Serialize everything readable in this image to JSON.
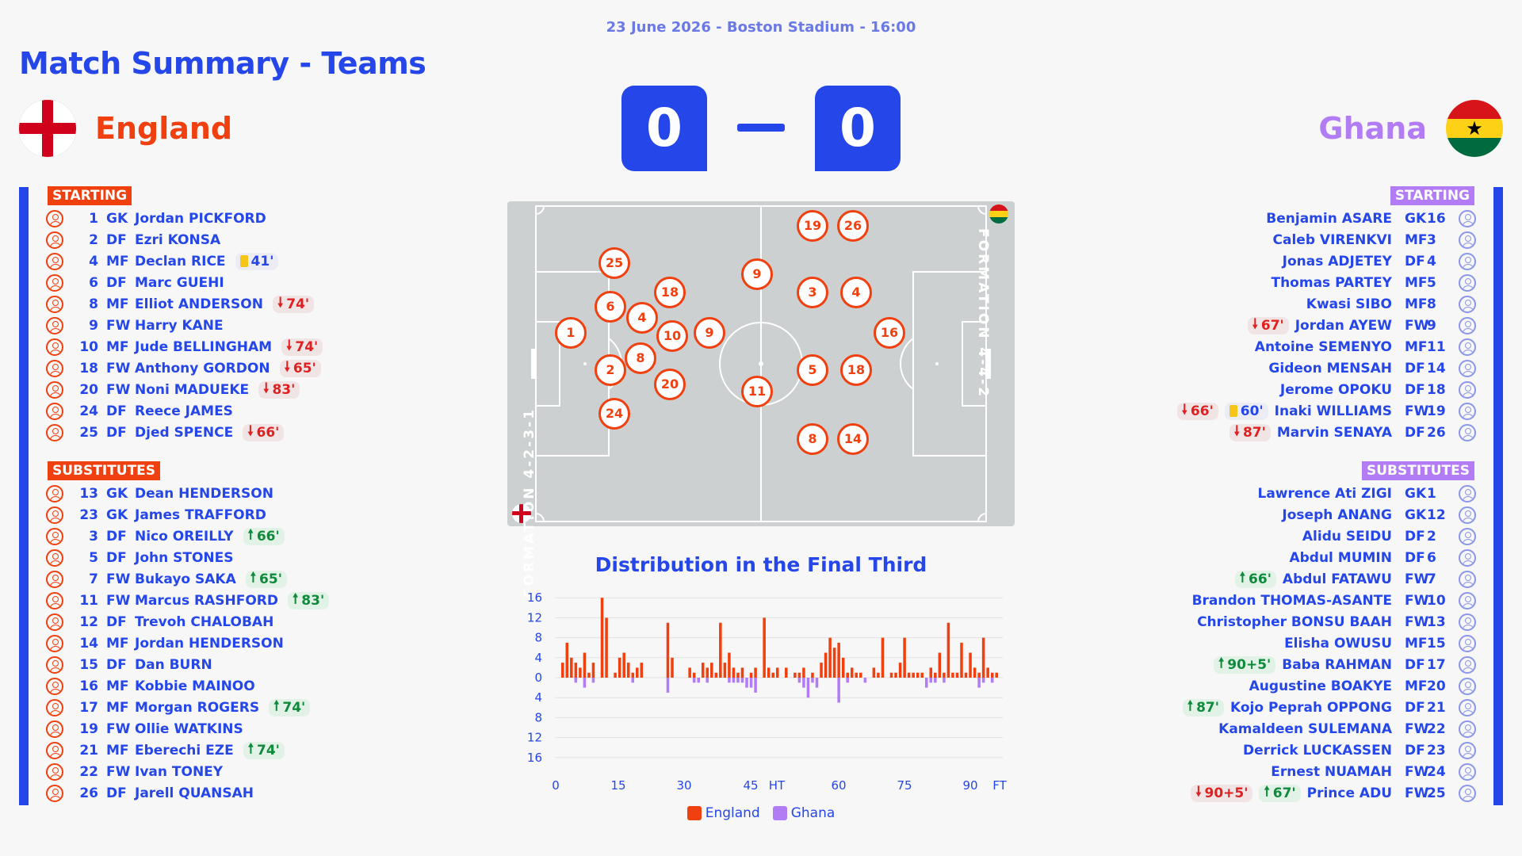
{
  "meta": "23 June 2026 - Boston Stadium - 16:00",
  "title": "Match Summary - Teams",
  "home": {
    "name": "England",
    "score": "0",
    "color": "#f04010",
    "formation": "FORMATION 4-2-3-1",
    "starting_label": "STARTING",
    "subs_label": "SUBSTITUTES",
    "starting": [
      {
        "num": "1",
        "pos": "GK",
        "name": "Jordan PICKFORD",
        "events": []
      },
      {
        "num": "2",
        "pos": "DF",
        "name": "Ezri KONSA",
        "events": []
      },
      {
        "num": "4",
        "pos": "MF",
        "name": "Declan RICE",
        "events": [
          {
            "type": "yellow",
            "text": "41'"
          }
        ]
      },
      {
        "num": "6",
        "pos": "DF",
        "name": "Marc GUEHI",
        "events": []
      },
      {
        "num": "8",
        "pos": "MF",
        "name": "Elliot ANDERSON",
        "events": [
          {
            "type": "out",
            "text": "74'"
          }
        ]
      },
      {
        "num": "9",
        "pos": "FW",
        "name": "Harry KANE",
        "events": []
      },
      {
        "num": "10",
        "pos": "MF",
        "name": "Jude BELLINGHAM",
        "events": [
          {
            "type": "out",
            "text": "74'"
          }
        ]
      },
      {
        "num": "18",
        "pos": "FW",
        "name": "Anthony GORDON",
        "events": [
          {
            "type": "out",
            "text": "65'"
          }
        ]
      },
      {
        "num": "20",
        "pos": "FW",
        "name": "Noni MADUEKE",
        "events": [
          {
            "type": "out",
            "text": "83'"
          }
        ]
      },
      {
        "num": "24",
        "pos": "DF",
        "name": "Reece JAMES",
        "events": []
      },
      {
        "num": "25",
        "pos": "DF",
        "name": "Djed SPENCE",
        "events": [
          {
            "type": "out",
            "text": "66'"
          }
        ]
      }
    ],
    "substitutes": [
      {
        "num": "13",
        "pos": "GK",
        "name": "Dean HENDERSON",
        "events": []
      },
      {
        "num": "23",
        "pos": "GK",
        "name": "James TRAFFORD",
        "events": []
      },
      {
        "num": "3",
        "pos": "DF",
        "name": "Nico OREILLY",
        "events": [
          {
            "type": "in",
            "text": "66'"
          }
        ]
      },
      {
        "num": "5",
        "pos": "DF",
        "name": "John STONES",
        "events": []
      },
      {
        "num": "7",
        "pos": "FW",
        "name": "Bukayo SAKA",
        "events": [
          {
            "type": "in",
            "text": "65'"
          }
        ]
      },
      {
        "num": "11",
        "pos": "FW",
        "name": "Marcus RASHFORD",
        "events": [
          {
            "type": "in",
            "text": "83'"
          }
        ]
      },
      {
        "num": "12",
        "pos": "DF",
        "name": "Trevoh CHALOBAH",
        "events": []
      },
      {
        "num": "14",
        "pos": "MF",
        "name": "Jordan HENDERSON",
        "events": []
      },
      {
        "num": "15",
        "pos": "DF",
        "name": "Dan BURN",
        "events": []
      },
      {
        "num": "16",
        "pos": "MF",
        "name": "Kobbie MAINOO",
        "events": []
      },
      {
        "num": "17",
        "pos": "MF",
        "name": "Morgan ROGERS",
        "events": [
          {
            "type": "in",
            "text": "74'"
          }
        ]
      },
      {
        "num": "19",
        "pos": "FW",
        "name": "Ollie WATKINS",
        "events": []
      },
      {
        "num": "21",
        "pos": "MF",
        "name": "Eberechi EZE",
        "events": [
          {
            "type": "in",
            "text": "74'"
          }
        ]
      },
      {
        "num": "22",
        "pos": "FW",
        "name": "Ivan TONEY",
        "events": []
      },
      {
        "num": "26",
        "pos": "DF",
        "name": "Jarell QUANSAH",
        "events": []
      }
    ]
  },
  "away": {
    "name": "Ghana",
    "score": "0",
    "color": "#b27cf5",
    "formation": "FORMATION 4-4-2",
    "starting_label": "STARTING",
    "subs_label": "SUBSTITUTES",
    "starting": [
      {
        "num": "16",
        "pos": "GK",
        "name": "Benjamin ASARE",
        "events": []
      },
      {
        "num": "3",
        "pos": "MF",
        "name": "Caleb VIRENKVI",
        "events": []
      },
      {
        "num": "4",
        "pos": "DF",
        "name": "Jonas ADJETEY",
        "events": []
      },
      {
        "num": "5",
        "pos": "MF",
        "name": "Thomas PARTEY",
        "events": []
      },
      {
        "num": "8",
        "pos": "MF",
        "name": "Kwasi SIBO",
        "events": []
      },
      {
        "num": "9",
        "pos": "FW",
        "name": "Jordan AYEW",
        "events": [
          {
            "type": "out",
            "text": "67'"
          }
        ]
      },
      {
        "num": "11",
        "pos": "MF",
        "name": "Antoine SEMENYO",
        "events": []
      },
      {
        "num": "14",
        "pos": "DF",
        "name": "Gideon MENSAH",
        "events": []
      },
      {
        "num": "18",
        "pos": "DF",
        "name": "Jerome OPOKU",
        "events": []
      },
      {
        "num": "19",
        "pos": "FW",
        "name": "Inaki WILLIAMS",
        "events": [
          {
            "type": "out",
            "text": "66'"
          },
          {
            "type": "yellow",
            "text": "60'"
          }
        ]
      },
      {
        "num": "26",
        "pos": "DF",
        "name": "Marvin SENAYA",
        "events": [
          {
            "type": "out",
            "text": "87'"
          }
        ]
      }
    ],
    "substitutes": [
      {
        "num": "1",
        "pos": "GK",
        "name": "Lawrence Ati ZIGI",
        "events": []
      },
      {
        "num": "12",
        "pos": "GK",
        "name": "Joseph ANANG",
        "events": []
      },
      {
        "num": "2",
        "pos": "DF",
        "name": "Alidu SEIDU",
        "events": []
      },
      {
        "num": "6",
        "pos": "DF",
        "name": "Abdul MUMIN",
        "events": []
      },
      {
        "num": "7",
        "pos": "FW",
        "name": "Abdul FATAWU",
        "events": [
          {
            "type": "in",
            "text": "66'"
          }
        ]
      },
      {
        "num": "10",
        "pos": "FW",
        "name": "Brandon THOMAS-ASANTE",
        "events": []
      },
      {
        "num": "13",
        "pos": "FW",
        "name": "Christopher BONSU BAAH",
        "events": []
      },
      {
        "num": "15",
        "pos": "MF",
        "name": "Elisha OWUSU",
        "events": []
      },
      {
        "num": "17",
        "pos": "DF",
        "name": "Baba RAHMAN",
        "events": [
          {
            "type": "in",
            "text": "90+5'"
          }
        ]
      },
      {
        "num": "20",
        "pos": "MF",
        "name": "Augustine BOAKYE",
        "events": []
      },
      {
        "num": "21",
        "pos": "DF",
        "name": "Kojo Peprah OPPONG",
        "events": [
          {
            "type": "in",
            "text": "87'"
          }
        ]
      },
      {
        "num": "22",
        "pos": "FW",
        "name": "Kamaldeen SULEMANA",
        "events": []
      },
      {
        "num": "23",
        "pos": "DF",
        "name": "Derrick LUCKASSEN",
        "events": []
      },
      {
        "num": "24",
        "pos": "FW",
        "name": "Ernest NUAMAH",
        "events": []
      },
      {
        "num": "25",
        "pos": "FW",
        "name": "Prince ADU",
        "events": [
          {
            "type": "out",
            "text": "90+5'"
          },
          {
            "type": "in",
            "text": "67'"
          }
        ]
      }
    ]
  },
  "pitch_markers": [
    "1",
    "2",
    "6",
    "4",
    "8",
    "25",
    "24",
    "18",
    "10",
    "20",
    "9",
    "9",
    "11",
    "19",
    "26",
    "3",
    "4",
    "5",
    "18",
    "8",
    "14",
    "16"
  ],
  "chart_data": {
    "type": "bar",
    "title": "Distribution in the Final Third",
    "x_ticks": [
      "0",
      "15",
      "30",
      "45",
      "HT",
      "60",
      "75",
      "90",
      "FT"
    ],
    "y_ticks": [
      "16",
      "12",
      "8",
      "4",
      "0",
      "4",
      "8",
      "12",
      "16"
    ],
    "ylim": [
      -16,
      16
    ],
    "legend": [
      "England",
      "Ghana"
    ],
    "colors": {
      "England": "#f04010",
      "Ghana": "#b27cf5"
    },
    "series": [
      {
        "name": "England",
        "values": [
          3,
          7,
          4,
          3,
          2,
          5,
          1,
          3,
          0,
          16,
          12,
          0,
          1,
          4,
          5,
          3,
          1,
          2,
          3,
          0,
          0,
          0,
          0,
          0,
          11,
          4,
          0,
          0,
          0,
          2,
          1,
          0,
          3,
          2,
          3,
          1,
          11,
          3,
          5,
          2,
          1,
          2,
          0,
          1,
          2,
          0,
          12,
          2,
          1,
          2,
          0,
          2,
          0,
          1,
          1,
          2,
          0,
          1,
          0,
          3,
          5,
          8,
          6,
          7,
          4,
          1,
          2,
          1,
          1,
          0,
          0,
          2,
          1,
          8,
          0,
          1,
          1,
          3,
          8,
          1,
          1,
          1,
          1,
          0,
          2,
          1,
          5,
          1,
          11,
          1,
          1,
          7,
          1,
          5,
          2,
          1,
          8,
          2,
          1,
          1
        ]
      },
      {
        "name": "Ghana",
        "values": [
          0,
          0,
          0,
          1,
          0,
          2,
          0,
          1,
          0,
          0,
          0,
          0,
          0,
          0,
          0,
          0,
          1,
          0,
          0,
          0,
          0,
          0,
          0,
          0,
          3,
          0,
          0,
          0,
          0,
          0,
          1,
          1,
          0,
          1,
          0,
          0,
          0,
          0,
          1,
          1,
          1,
          1,
          2,
          2,
          3,
          0,
          0,
          0,
          0,
          0,
          0,
          0,
          0,
          0,
          1,
          2,
          4,
          1,
          2,
          0,
          0,
          0,
          0,
          5,
          0,
          1,
          0,
          0,
          0,
          1,
          0,
          0,
          0,
          0,
          0,
          0,
          0,
          0,
          0,
          0,
          0,
          0,
          0,
          2,
          1,
          1,
          0,
          1,
          0,
          0,
          0,
          0,
          0,
          0,
          0,
          2,
          1,
          0,
          1,
          0
        ]
      }
    ]
  }
}
